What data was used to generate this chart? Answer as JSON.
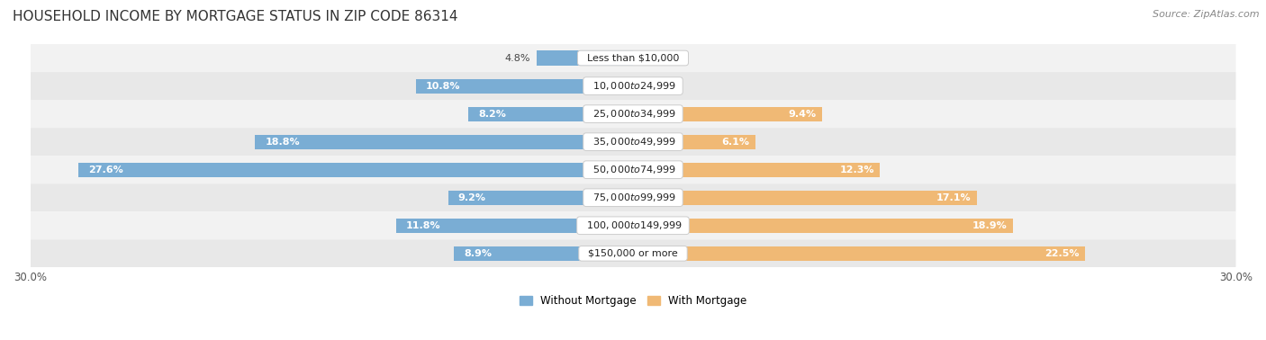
{
  "title": "HOUSEHOLD INCOME BY MORTGAGE STATUS IN ZIP CODE 86314",
  "source": "Source: ZipAtlas.com",
  "categories": [
    "Less than $10,000",
    "$10,000 to $24,999",
    "$25,000 to $34,999",
    "$35,000 to $49,999",
    "$50,000 to $74,999",
    "$75,000 to $99,999",
    "$100,000 to $149,999",
    "$150,000 or more"
  ],
  "without_mortgage": [
    4.8,
    10.8,
    8.2,
    18.8,
    27.6,
    9.2,
    11.8,
    8.9
  ],
  "with_mortgage": [
    0.0,
    0.51,
    9.4,
    6.1,
    12.3,
    17.1,
    18.9,
    22.5
  ],
  "color_without": "#7aadd4",
  "color_with": "#f0b975",
  "xlim": 30.0,
  "title_fontsize": 11,
  "label_fontsize": 8.0,
  "tick_fontsize": 8.5,
  "source_fontsize": 8,
  "row_colors": [
    "#f2f2f2",
    "#e8e8e8"
  ]
}
